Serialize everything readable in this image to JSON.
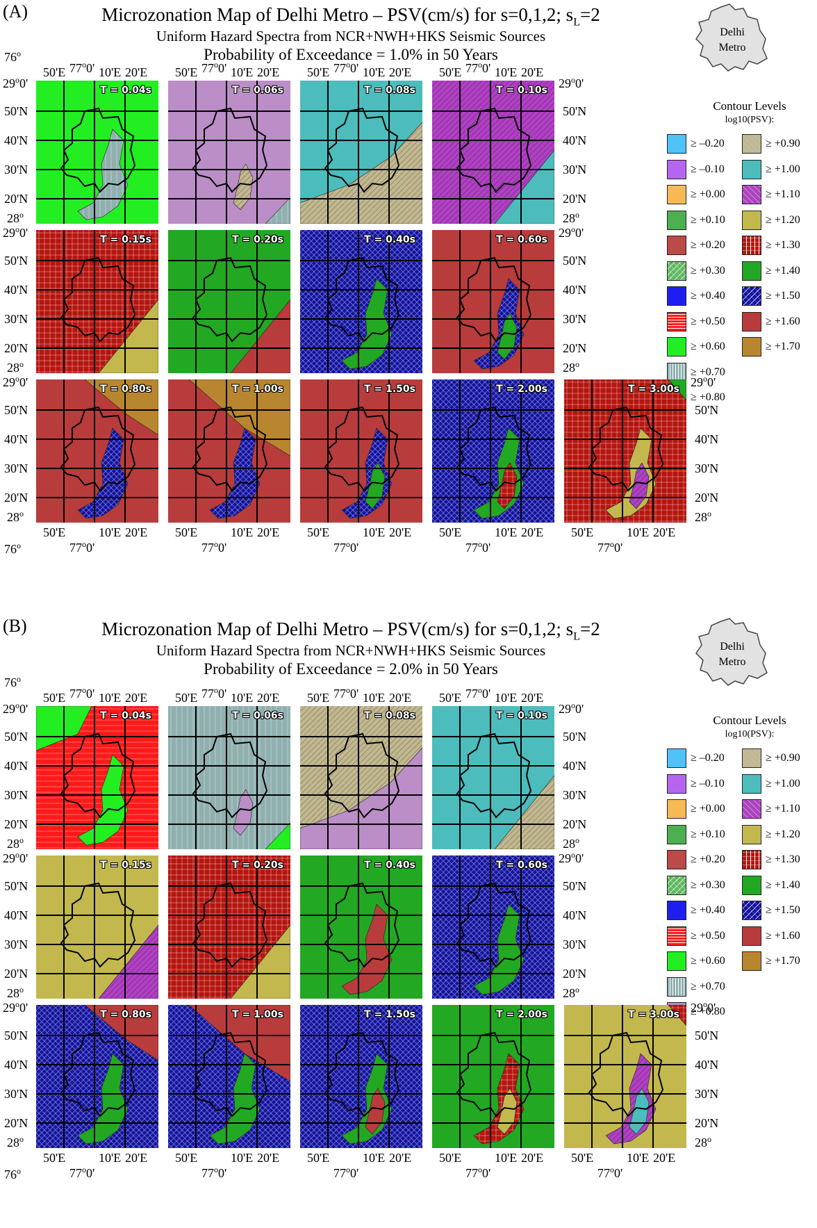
{
  "figure": {
    "title": "Microzonation Map of Delhi Metro – PSV(cm/s) for s=0,1,2; s",
    "title_sub": "L",
    "title_tail": "=2",
    "subtitle": "Uniform Hazard Spectra from NCR+NWH+HKS Seismic Sources",
    "inset_label_1": "Delhi",
    "inset_label_2": "Metro",
    "legend_title": "Contour Levels",
    "legend_subtitle": "log10(PSV):",
    "legend_levels": [
      {
        "label": "≥ –0.20",
        "color": "#4fc3f7",
        "pattern": "none"
      },
      {
        "label": "≥ –0.10",
        "color": "#b566f0",
        "pattern": "none"
      },
      {
        "label": "≥ +0.00",
        "color": "#f7b955",
        "pattern": "none"
      },
      {
        "label": "≥ +0.10",
        "color": "#4caf50",
        "pattern": "none"
      },
      {
        "label": "≥ +0.20",
        "color": "#bb4a48",
        "pattern": "none"
      },
      {
        "label": "≥ +0.30",
        "color": "#5fb85f",
        "pattern": "cross"
      },
      {
        "label": "≥ +0.40",
        "color": "#1e1ef0",
        "pattern": "none"
      },
      {
        "label": "≥ +0.50",
        "color": "#ff1a1a",
        "pattern": "hline"
      },
      {
        "label": "≥ +0.60",
        "color": "#22ee22",
        "pattern": "none"
      },
      {
        "label": "≥ +0.70",
        "color": "#90b0b0",
        "pattern": "vline"
      },
      {
        "label": "≥ +0.80",
        "color": "#bb8ec7",
        "pattern": "none"
      },
      {
        "label": "≥ +0.90",
        "color": "#c2b890",
        "pattern": "diag"
      },
      {
        "label": "≥ +1.00",
        "color": "#4cbcbc",
        "pattern": "none"
      },
      {
        "label": "≥ +1.10",
        "color": "#b040c4",
        "pattern": "diag"
      },
      {
        "label": "≥ +1.20",
        "color": "#c2b84e",
        "pattern": "none"
      },
      {
        "label": "≥ +1.30",
        "color": "#b5150f",
        "pattern": "grid"
      },
      {
        "label": "≥ +1.40",
        "color": "#22a822",
        "pattern": "none"
      },
      {
        "label": "≥ +1.50",
        "color": "#1212a0",
        "pattern": "cross"
      },
      {
        "label": "≥ +1.60",
        "color": "#b83c3c",
        "pattern": "none"
      },
      {
        "label": "≥ +1.70",
        "color": "#b8862e",
        "pattern": "none"
      }
    ],
    "axis_labels": {
      "lon_76": "76",
      "lon_50": "50'E",
      "lon_77": "77",
      "lon_10": "10'E",
      "lon_20": "20'E",
      "lat_29": "29",
      "lat_50": "50'N",
      "lat_40": "40'N",
      "lat_30": "30'N",
      "lat_20": "20'N",
      "lat_28": "28",
      "deg": "o",
      "min0": "0'"
    }
  },
  "panels": [
    {
      "label": "(A)",
      "probability": "Probability of Exceedance =  1.0% in 50 Years",
      "maps": [
        {
          "period": "T = 0.04s",
          "base": "≥ +0.60",
          "zones": [
            {
              "level": "≥ +0.70",
              "shape": "plume"
            }
          ]
        },
        {
          "period": "T = 0.06s",
          "base": "≥ +0.80",
          "zones": [
            {
              "level": "≥ +0.90",
              "shape": "plume_small"
            },
            {
              "level": "≥ +0.70",
              "shape": "corner_se"
            }
          ]
        },
        {
          "period": "T = 0.08s",
          "base": "≥ +1.00",
          "zones": [
            {
              "level": "≥ +0.90",
              "shape": "band_se_wide"
            }
          ]
        },
        {
          "period": "T = 0.10s",
          "base": "≥ +1.10",
          "zones": [
            {
              "level": "≥ +1.00",
              "shape": "band_se"
            }
          ]
        },
        {
          "period": "T = 0.15s",
          "base": "≥ +1.30",
          "zones": [
            {
              "level": "≥ +1.20",
              "shape": "band_se"
            }
          ]
        },
        {
          "period": "T = 0.20s",
          "base": "≥ +1.40",
          "zones": [
            {
              "level": "≥ +1.60",
              "shape": "band_se"
            }
          ]
        },
        {
          "period": "T = 0.40s",
          "base": "≥ +1.50",
          "zones": [
            {
              "level": "≥ +1.40",
              "shape": "plume"
            }
          ]
        },
        {
          "period": "T = 0.60s",
          "base": "≥ +1.60",
          "zones": [
            {
              "level": "≥ +1.50",
              "shape": "plume"
            },
            {
              "level": "≥ +1.40",
              "shape": "plume_small"
            }
          ]
        },
        {
          "period": "T = 0.80s",
          "base": "≥ +1.60",
          "zones": [
            {
              "level": "≥ +1.70",
              "shape": "band_ne"
            },
            {
              "level": "≥ +1.50",
              "shape": "plume"
            }
          ]
        },
        {
          "period": "T = 1.00s",
          "base": "≥ +1.60",
          "zones": [
            {
              "level": "≥ +1.70",
              "shape": "band_ne_wide"
            },
            {
              "level": "≥ +1.50",
              "shape": "plume"
            }
          ]
        },
        {
          "period": "T = 1.50s",
          "base": "≥ +1.60",
          "zones": [
            {
              "level": "≥ +1.50",
              "shape": "plume"
            },
            {
              "level": "≥ +1.40",
              "shape": "plume_small"
            }
          ]
        },
        {
          "period": "T = 2.00s",
          "base": "≥ +1.50",
          "zones": [
            {
              "level": "≥ +1.40",
              "shape": "plume"
            },
            {
              "level": "≥ +1.30",
              "shape": "plume_small"
            }
          ]
        },
        {
          "period": "T = 3.00s",
          "base": "≥ +1.30",
          "zones": [
            {
              "level": "≥ +1.20",
              "shape": "plume"
            },
            {
              "level": "≥ +1.10",
              "shape": "plume_small"
            },
            {
              "level": "≥ +1.40",
              "shape": "corner_ne"
            }
          ]
        }
      ]
    },
    {
      "label": "(B)",
      "probability": "Probability of Exceedance =  2.0% in 50 Years",
      "maps": [
        {
          "period": "T = 0.04s",
          "base": "≥ +0.50",
          "zones": [
            {
              "level": "≥ +0.60",
              "shape": "band_nw"
            },
            {
              "level": "≥ +0.60",
              "shape": "plume"
            }
          ]
        },
        {
          "period": "T = 0.06s",
          "base": "≥ +0.70",
          "zones": [
            {
              "level": "≥ +0.80",
              "shape": "plume_small"
            },
            {
              "level": "≥ +0.60",
              "shape": "corner_se"
            }
          ]
        },
        {
          "period": "T = 0.08s",
          "base": "≥ +0.90",
          "zones": [
            {
              "level": "≥ +0.80",
              "shape": "band_se_wide"
            }
          ]
        },
        {
          "period": "T = 0.10s",
          "base": "≥ +1.00",
          "zones": [
            {
              "level": "≥ +0.90",
              "shape": "band_se"
            }
          ]
        },
        {
          "period": "T = 0.15s",
          "base": "≥ +1.20",
          "zones": [
            {
              "level": "≥ +1.10",
              "shape": "band_se"
            }
          ]
        },
        {
          "period": "T = 0.20s",
          "base": "≥ +1.30",
          "zones": [
            {
              "level": "≥ +1.20",
              "shape": "band_se"
            }
          ]
        },
        {
          "period": "T = 0.40s",
          "base": "≥ +1.40",
          "zones": [
            {
              "level": "≥ +1.60",
              "shape": "plume"
            }
          ]
        },
        {
          "period": "T = 0.60s",
          "base": "≥ +1.50",
          "zones": [
            {
              "level": "≥ +1.40",
              "shape": "plume"
            }
          ]
        },
        {
          "period": "T = 0.80s",
          "base": "≥ +1.50",
          "zones": [
            {
              "level": "≥ +1.60",
              "shape": "band_ne"
            },
            {
              "level": "≥ +1.40",
              "shape": "plume"
            }
          ]
        },
        {
          "period": "T = 1.00s",
          "base": "≥ +1.50",
          "zones": [
            {
              "level": "≥ +1.60",
              "shape": "band_ne_wide"
            },
            {
              "level": "≥ +1.40",
              "shape": "plume"
            }
          ]
        },
        {
          "period": "T = 1.50s",
          "base": "≥ +1.50",
          "zones": [
            {
              "level": "≥ +1.40",
              "shape": "plume"
            },
            {
              "level": "≥ +1.60",
              "shape": "plume_small"
            }
          ]
        },
        {
          "period": "T = 2.00s",
          "base": "≥ +1.40",
          "zones": [
            {
              "level": "≥ +1.30",
              "shape": "plume"
            },
            {
              "level": "≥ +1.20",
              "shape": "plume_small"
            }
          ]
        },
        {
          "period": "T = 3.00s",
          "base": "≥ +1.20",
          "zones": [
            {
              "level": "≥ +1.30",
              "shape": "corner_ne"
            },
            {
              "level": "≥ +1.10",
              "shape": "plume"
            },
            {
              "level": "≥ +1.00",
              "shape": "plume_small"
            }
          ]
        }
      ]
    }
  ]
}
